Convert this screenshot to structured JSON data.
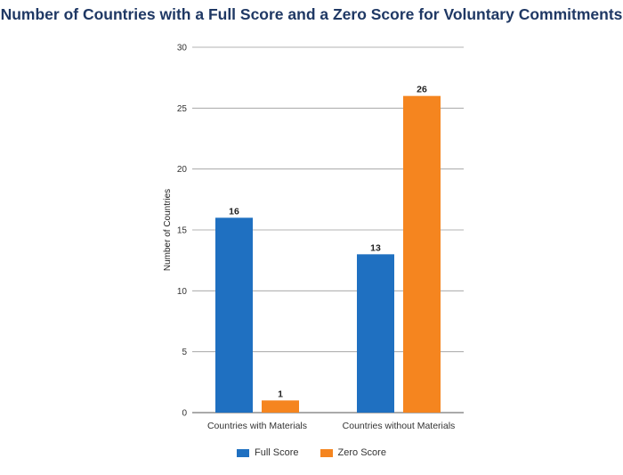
{
  "title": "Number of Countries with a Full Score and a Zero Score for Voluntary Commitments",
  "chart_data": {
    "type": "bar",
    "categories": [
      "Countries with Materials",
      "Countries without Materials"
    ],
    "series": [
      {
        "name": "Full Score",
        "values": [
          16,
          13
        ],
        "color": "#1f70c1"
      },
      {
        "name": "Zero Score",
        "values": [
          1,
          26
        ],
        "color": "#f5851f"
      }
    ],
    "ylabel": "Number of Countries",
    "xlabel": "",
    "ylim": [
      0,
      30
    ],
    "yticks": [
      0,
      5,
      10,
      15,
      20,
      25,
      30
    ],
    "grid": true,
    "legend_position": "bottom"
  }
}
